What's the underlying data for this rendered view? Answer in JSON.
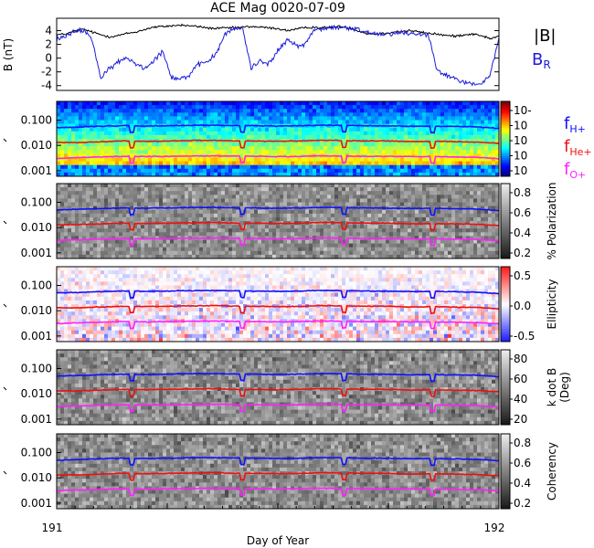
{
  "title": "ACE Mag 0020-07-09",
  "x_axis": {
    "label": "Day of Year",
    "start_label": "191",
    "end_label": "192",
    "xlim": [
      191,
      192
    ]
  },
  "colors": {
    "b_total": "#000000",
    "b_r": "#1c1cd8",
    "f_h": "#1010ff",
    "f_he": "#ee1010",
    "f_o": "#ff20ff"
  },
  "chart_data": [
    {
      "type": "line",
      "panel": "magnetic-field",
      "ylabel": "B (nT)",
      "ylim": [
        -4.7,
        5.8
      ],
      "yticks": [
        4,
        2,
        0,
        -2,
        -4
      ],
      "series": [
        {
          "name": "|B|",
          "name_main": "|B|",
          "name_sub": "",
          "color": "#000000",
          "x": [
            191.0,
            191.02,
            191.04,
            191.06,
            191.08,
            191.1,
            191.12,
            191.14,
            191.16,
            191.18,
            191.2,
            191.22,
            191.24,
            191.26,
            191.28,
            191.3,
            191.32,
            191.34,
            191.36,
            191.38,
            191.4,
            191.42,
            191.44,
            191.46,
            191.48,
            191.5,
            191.52,
            191.54,
            191.56,
            191.58,
            191.6,
            191.62,
            191.64,
            191.66,
            191.68,
            191.7,
            191.72,
            191.74,
            191.76,
            191.78,
            191.8,
            191.82,
            191.84,
            191.86,
            191.88,
            191.9,
            191.92,
            191.94,
            191.96,
            191.98,
            192.0
          ],
          "y": [
            3.4,
            3.5,
            3.9,
            4.2,
            3.8,
            3.4,
            3.1,
            3.3,
            3.6,
            3.8,
            4.2,
            4.5,
            4.6,
            4.7,
            4.8,
            4.7,
            4.6,
            4.4,
            4.3,
            4.4,
            4.4,
            4.5,
            4.6,
            4.5,
            4.4,
            4.3,
            4.0,
            4.2,
            4.4,
            4.5,
            4.4,
            4.5,
            4.6,
            4.4,
            4.0,
            3.6,
            3.5,
            3.6,
            3.8,
            3.9,
            4.0,
            3.8,
            3.6,
            3.5,
            3.3,
            3.2,
            3.4,
            3.5,
            3.3,
            2.8,
            3.2
          ]
        },
        {
          "name": "B_R",
          "name_main": "B",
          "name_sub": "R",
          "color": "#1c1cd8",
          "x": [
            191.0,
            191.02,
            191.04,
            191.06,
            191.08,
            191.1,
            191.12,
            191.14,
            191.16,
            191.18,
            191.2,
            191.22,
            191.24,
            191.26,
            191.28,
            191.3,
            191.32,
            191.34,
            191.36,
            191.38,
            191.4,
            191.42,
            191.44,
            191.46,
            191.48,
            191.5,
            191.52,
            191.54,
            191.56,
            191.58,
            191.6,
            191.62,
            191.64,
            191.66,
            191.68,
            191.7,
            191.72,
            191.74,
            191.76,
            191.78,
            191.8,
            191.82,
            191.84,
            191.86,
            191.88,
            191.9,
            191.92,
            191.94,
            191.96,
            191.98,
            192.0
          ],
          "y": [
            2.7,
            3.2,
            3.8,
            4.1,
            2.8,
            -3.0,
            -1.5,
            -0.5,
            0.0,
            -0.8,
            -1.5,
            -0.2,
            1.0,
            -2.8,
            -3.0,
            -2.5,
            -1.0,
            -0.5,
            0.5,
            3.5,
            4.2,
            4.4,
            -1.5,
            -0.3,
            -0.8,
            1.0,
            2.6,
            2.0,
            1.8,
            4.0,
            4.3,
            4.4,
            4.5,
            4.3,
            4.2,
            3.8,
            3.6,
            3.5,
            3.6,
            3.7,
            3.6,
            3.5,
            3.4,
            -1.5,
            -2.5,
            -3.0,
            -3.5,
            -3.7,
            -3.8,
            -2.5,
            2.9
          ]
        }
      ]
    },
    {
      "type": "heatmap",
      "panel": "power",
      "yscale": "log",
      "ylim": [
        0.0006,
        0.55
      ],
      "yticks": [
        "0.100",
        "0.010",
        "0.001"
      ],
      "colorbar": {
        "ticks": [
          "10-",
          "10",
          "10",
          "10",
          "10"
        ]
      },
      "legend": [
        {
          "main": "f",
          "sub": "H+"
        },
        {
          "main": "f",
          "sub": "He+"
        },
        {
          "main": "f",
          "sub": "O+"
        }
      ]
    },
    {
      "type": "heatmap",
      "panel": "polarization",
      "yscale": "log",
      "ylim": [
        0.0006,
        0.55
      ],
      "yticks": [
        "0.100",
        "0.010",
        "0.001"
      ],
      "colorbar": {
        "label": "% Polarization",
        "ticks": [
          "0.8",
          "0.6",
          "0.4",
          "0.2"
        ]
      }
    },
    {
      "type": "heatmap",
      "panel": "ellipticity",
      "yscale": "log",
      "ylim": [
        0.0006,
        0.55
      ],
      "yticks": [
        "0.100",
        "0.010",
        "0.001"
      ],
      "colorbar": {
        "label": "Ellipticity",
        "ticks": [
          "0.5",
          "0.0",
          "-0.5"
        ]
      }
    },
    {
      "type": "heatmap",
      "panel": "wave-normal",
      "yscale": "log",
      "ylim": [
        0.0006,
        0.55
      ],
      "yticks": [
        "0.100",
        "0.010",
        "0.001"
      ],
      "colorbar": {
        "label": "k dot B",
        "label2": "(Deg)",
        "ticks": [
          "80",
          "60",
          "40",
          "20"
        ]
      }
    },
    {
      "type": "heatmap",
      "panel": "coherency",
      "yscale": "log",
      "ylim": [
        0.0006,
        0.55
      ],
      "yticks": [
        "0.100",
        "0.010",
        "0.001"
      ],
      "colorbar": {
        "label": "Coherency",
        "ticks": [
          "0.8",
          "0.6",
          "0.4",
          "0.2"
        ]
      }
    }
  ],
  "gyro_lines": {
    "x": [
      191.0,
      191.05,
      191.1,
      191.15,
      191.2,
      191.25,
      191.3,
      191.35,
      191.4,
      191.45,
      191.5,
      191.55,
      191.6,
      191.65,
      191.7,
      191.75,
      191.8,
      191.85,
      191.9,
      191.95,
      192.0
    ],
    "f_h": [
      0.05,
      0.053,
      0.057,
      0.06,
      0.058,
      0.06,
      0.062,
      0.063,
      0.061,
      0.06,
      0.058,
      0.06,
      0.063,
      0.062,
      0.06,
      0.059,
      0.057,
      0.058,
      0.056,
      0.054,
      0.047
    ],
    "f_he": [
      0.013,
      0.013,
      0.014,
      0.015,
      0.0145,
      0.015,
      0.0155,
      0.016,
      0.015,
      0.015,
      0.0145,
      0.015,
      0.016,
      0.0155,
      0.015,
      0.015,
      0.014,
      0.0145,
      0.014,
      0.0135,
      0.012
    ],
    "f_o": [
      0.0031,
      0.0033,
      0.0035,
      0.0037,
      0.0036,
      0.0037,
      0.0038,
      0.0039,
      0.0038,
      0.0037,
      0.0036,
      0.0037,
      0.0039,
      0.0038,
      0.0037,
      0.0037,
      0.0036,
      0.0036,
      0.0035,
      0.0034,
      0.003
    ],
    "dips": [
      191.17,
      191.42,
      191.65,
      191.85
    ]
  }
}
